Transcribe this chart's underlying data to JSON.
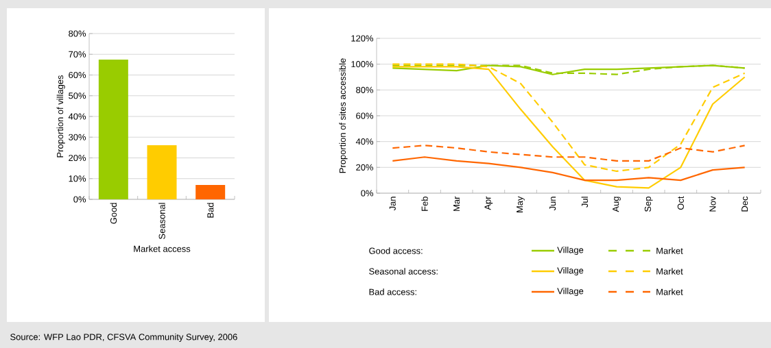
{
  "chart_data": [
    {
      "type": "bar",
      "categories": [
        "Good",
        "Seasonal",
        "Bad"
      ],
      "values": [
        67.4,
        26.1,
        6.9
      ],
      "colors": [
        "#99cc00",
        "#ffcc00",
        "#ff6600"
      ],
      "xlabel": "Market access",
      "ylabel": "Proportion of villages",
      "ylim": [
        0,
        80
      ],
      "yticks": [
        {
          "value": 0,
          "label": "0%"
        },
        {
          "value": 10,
          "label": "10%"
        },
        {
          "value": 20,
          "label": "20%"
        },
        {
          "value": 30,
          "label": "30%"
        },
        {
          "value": 40,
          "label": "40%"
        },
        {
          "value": 50,
          "label": "50%"
        },
        {
          "value": 60,
          "label": "60%"
        },
        {
          "value": 70,
          "label": "70%"
        },
        {
          "value": 80,
          "label": "80%"
        }
      ],
      "grid": "y",
      "annotations": [
        "Source: WFP Lao PDR, CFSVA Community Survey, 2006"
      ]
    },
    {
      "type": "line",
      "categories": [
        "Jan",
        "Feb",
        "Mar",
        "Apr",
        "May",
        "Jun",
        "Jul",
        "Aug",
        "Sep",
        "Oct",
        "Nov",
        "Dec"
      ],
      "series": [
        {
          "name": "Village",
          "color": "#99cc00",
          "line_style": "solid",
          "values": [
            97,
            96,
            95,
            99,
            98,
            92,
            96,
            96,
            97,
            98,
            99,
            97
          ]
        },
        {
          "name": "Market",
          "color": "#99cc00",
          "line_style": "dashed",
          "values": [
            99,
            99,
            99,
            99,
            99,
            93,
            93,
            92,
            96,
            98,
            99,
            97
          ]
        },
        {
          "name": "Village",
          "color": "#ffcc00",
          "line_style": "solid",
          "values": [
            98,
            98,
            98,
            96,
            65,
            36,
            10,
            5,
            4,
            20,
            69,
            90
          ]
        },
        {
          "name": "Market",
          "color": "#ffcc00",
          "line_style": "dashed",
          "values": [
            100,
            100,
            100,
            98,
            85,
            55,
            22,
            17,
            20,
            38,
            82,
            93
          ]
        },
        {
          "name": "Village",
          "color": "#ff6600",
          "line_style": "solid",
          "values": [
            25,
            28,
            25,
            23,
            20,
            16,
            10,
            10,
            12,
            10,
            18,
            20
          ]
        },
        {
          "name": "Market",
          "color": "#ff6600",
          "line_style": "dashed",
          "values": [
            35,
            37,
            35,
            32,
            30,
            28,
            28,
            25,
            25,
            35,
            32,
            37
          ]
        }
      ],
      "ylabel": "Proportion of sites accessible",
      "ylim": [
        0,
        120
      ],
      "yticks": [
        {
          "value": 0,
          "label": "0%"
        },
        {
          "value": 20,
          "label": "20%"
        },
        {
          "value": 40,
          "label": "40%"
        },
        {
          "value": 60,
          "label": "60%"
        },
        {
          "value": 80,
          "label": "80%"
        },
        {
          "value": 100,
          "label": "100%"
        },
        {
          "value": 120,
          "label": "120%"
        }
      ],
      "grid": "y",
      "legend": "bottom",
      "annotations": [
        "Good access:",
        "Seasonal access:",
        "Bad access:"
      ]
    }
  ]
}
